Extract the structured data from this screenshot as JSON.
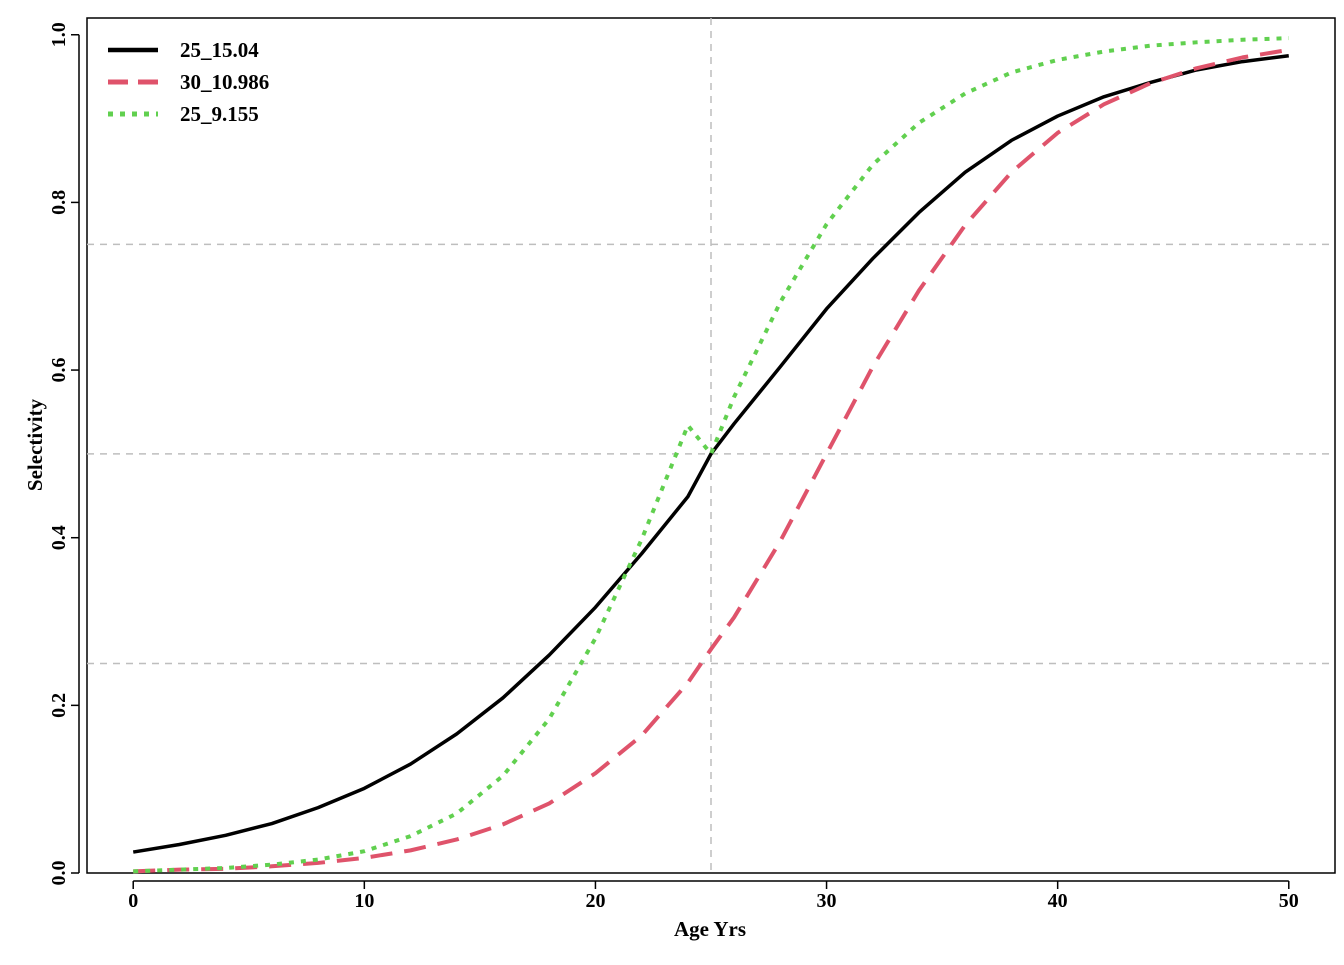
{
  "chart_data": {
    "type": "line",
    "xlabel": "Age Yrs",
    "ylabel": "Selectivity",
    "xlim": [
      -2,
      52
    ],
    "ylim": [
      0,
      1.02
    ],
    "x_ticks": [
      0,
      10,
      20,
      30,
      40,
      50
    ],
    "y_ticks": [
      0.0,
      0.2,
      0.4,
      0.6,
      0.8,
      1.0
    ],
    "x_tick_labels": [
      "0",
      "10",
      "20",
      "30",
      "40",
      "50"
    ],
    "y_tick_labels": [
      "0.0",
      "0.2",
      "0.4",
      "0.6",
      "0.8",
      "1.0"
    ],
    "reference_lines": {
      "vertical": [
        25
      ],
      "horizontal": [
        0.25,
        0.5,
        0.75
      ],
      "color": "#bebebe",
      "style": "dashed"
    },
    "legend_position": "top-left",
    "x": [
      0,
      2,
      4,
      6,
      8,
      10,
      12,
      14,
      16,
      18,
      20,
      22,
      24,
      25,
      26,
      28,
      30,
      32,
      34,
      36,
      38,
      40,
      42,
      44,
      46,
      48,
      50
    ],
    "series": [
      {
        "name": "25_15.04",
        "color": "#000000",
        "dash": "solid",
        "values": [
          0.025,
          0.034,
          0.045,
          0.059,
          0.078,
          0.101,
          0.13,
          0.166,
          0.209,
          0.26,
          0.317,
          0.381,
          0.449,
          0.5,
          0.536,
          0.604,
          0.673,
          0.733,
          0.788,
          0.836,
          0.874,
          0.903,
          0.926,
          0.943,
          0.958,
          0.968,
          0.975
        ]
      },
      {
        "name": "30_10.986",
        "color": "#df536b",
        "dash": "dashed",
        "values": [
          0.002,
          0.004,
          0.005,
          0.008,
          0.012,
          0.018,
          0.027,
          0.04,
          0.058,
          0.083,
          0.119,
          0.164,
          0.227,
          0.267,
          0.305,
          0.396,
          0.5,
          0.604,
          0.695,
          0.773,
          0.836,
          0.883,
          0.917,
          0.942,
          0.96,
          0.973,
          0.982
        ]
      },
      {
        "name": "25_9.155",
        "color": "#61d04f",
        "dash": "dotted",
        "values": [
          0.002,
          0.004,
          0.006,
          0.01,
          0.016,
          0.026,
          0.044,
          0.071,
          0.116,
          0.184,
          0.28,
          0.398,
          0.534,
          0.5,
          0.568,
          0.681,
          0.774,
          0.845,
          0.895,
          0.93,
          0.955,
          0.97,
          0.98,
          0.987,
          0.991,
          0.994,
          0.996
        ]
      }
    ]
  }
}
